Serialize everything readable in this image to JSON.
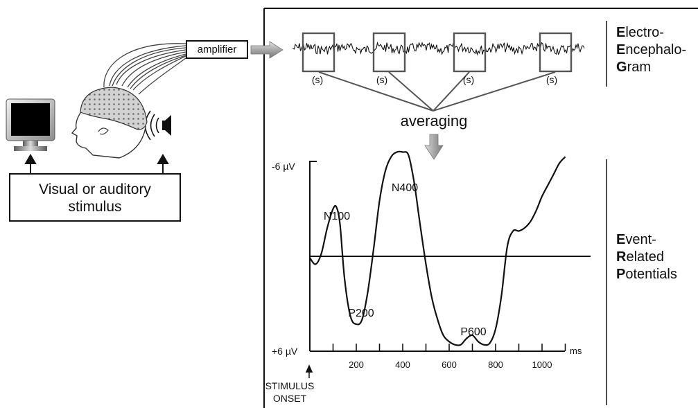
{
  "stimulus": {
    "line1": "Visual or auditory",
    "line2": "stimulus"
  },
  "amplifier_label": "amplifier",
  "eeg": {
    "segment_label": "(s)",
    "averaging_label": "averaging",
    "side_label": [
      {
        "first": "E",
        "rest": "lectro-"
      },
      {
        "first": "E",
        "rest": "ncephalo-"
      },
      {
        "first": "G",
        "rest": "ram"
      }
    ]
  },
  "erp": {
    "side_label": [
      {
        "first": "E",
        "rest": "vent-"
      },
      {
        "first": "R",
        "rest": "elated"
      },
      {
        "first": "P",
        "rest": "otentials"
      }
    ],
    "y_top_label": "-6 µV",
    "y_bottom_label": "+6 µV",
    "x_unit": "ms",
    "onset_label_line1": "STIMULUS",
    "onset_label_line2": "ONSET",
    "peaks": {
      "n100": "N100",
      "p200": "P200",
      "n400": "N400",
      "p600": "P600"
    }
  },
  "chart_data": {
    "type": "line",
    "title": "",
    "xlabel": "ms",
    "ylabel": "",
    "xlim": [
      0,
      1100
    ],
    "ylim": [
      6,
      -6
    ],
    "inverted_y": true,
    "x_ticks": [
      200,
      400,
      600,
      800,
      1000
    ],
    "series": [
      {
        "x": [
          0,
          25,
          50,
          75,
          100,
          115,
          130,
          150,
          175,
          200,
          225,
          250,
          275,
          300,
          325,
          350,
          375,
          400,
          425,
          450,
          475,
          500,
          525,
          550,
          575,
          600,
          625,
          650,
          675,
          700,
          725,
          750,
          775,
          800,
          825,
          850,
          875,
          900,
          925,
          950,
          975,
          1000,
          1025,
          1050,
          1075,
          1100
        ],
        "y": [
          0.1,
          0.5,
          -0.2,
          -1.8,
          -3.0,
          -3.1,
          -2.0,
          1.5,
          3.8,
          4.3,
          4.0,
          2.2,
          -0.5,
          -3.5,
          -5.4,
          -6.3,
          -6.6,
          -6.6,
          -6.4,
          -4.6,
          -2.0,
          0.5,
          2.6,
          4.0,
          5.0,
          5.4,
          5.6,
          5.6,
          5.2,
          5.0,
          5.4,
          5.6,
          5.5,
          4.6,
          2.5,
          -0.6,
          -1.6,
          -1.6,
          -1.8,
          -2.2,
          -2.9,
          -3.8,
          -4.5,
          -5.2,
          -5.9,
          -6.3
        ]
      }
    ]
  }
}
